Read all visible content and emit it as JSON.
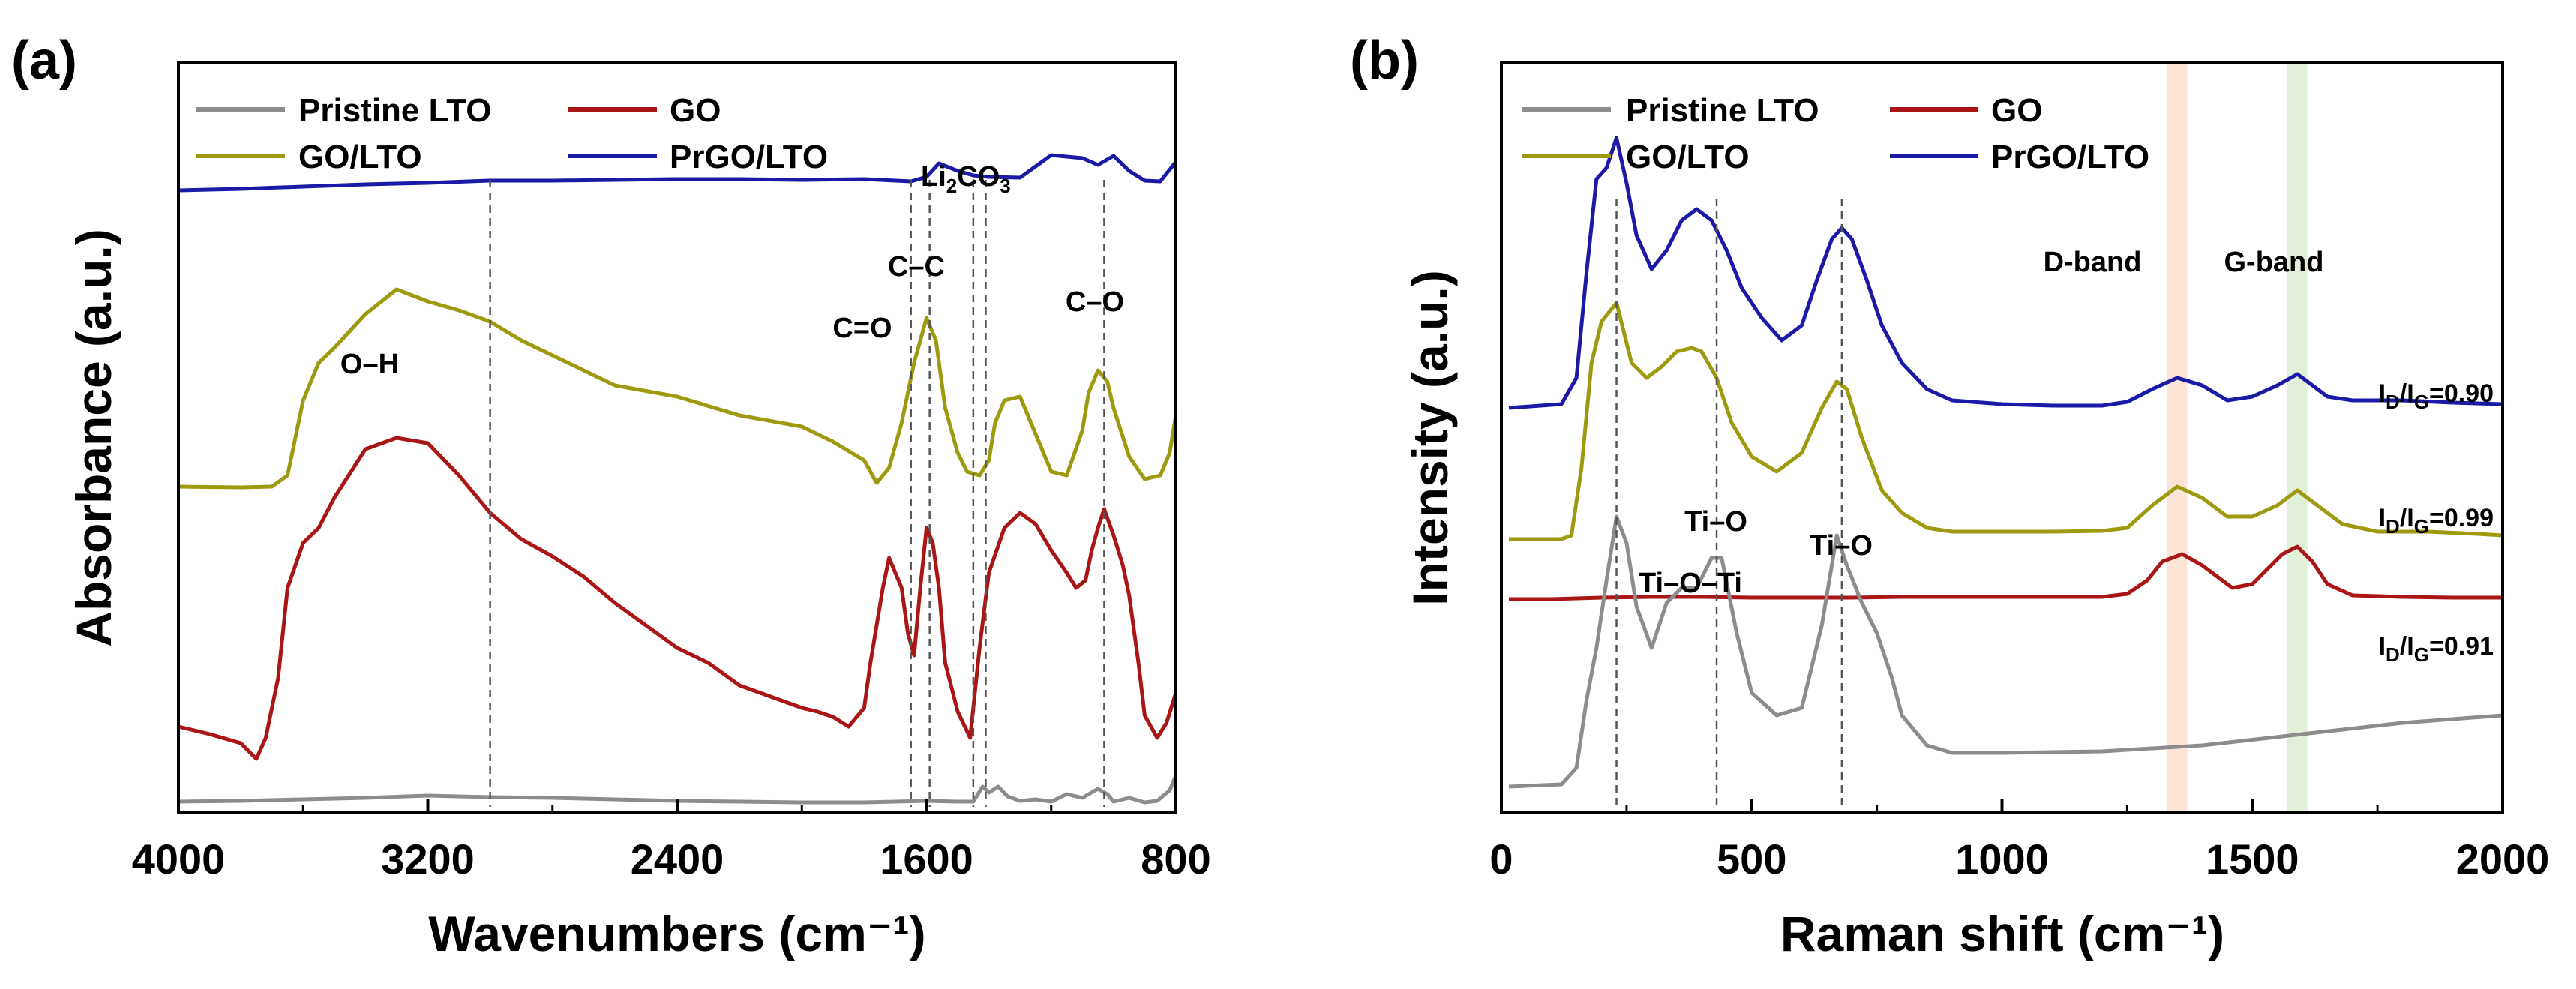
{
  "chart_data": [
    {
      "panel": "(a)",
      "type": "line",
      "title": "",
      "xlabel": "Wavenumbers (cm⁻¹)",
      "ylabel": "Absorbance (a.u.)",
      "xlim": [
        4000,
        800
      ],
      "ylim": [
        0,
        100
      ],
      "xticks": [
        "4000",
        "3200",
        "2400",
        "1600",
        "800"
      ],
      "xtick_values": [
        4000,
        3200,
        2400,
        1600,
        800
      ],
      "legend": [
        "Pristine LTO",
        "GO",
        "GO/LTO",
        "PrGO/LTO"
      ],
      "series": [
        {
          "name": "PrGO/LTO",
          "color": "#1a1aa6",
          "x": [
            4000,
            3800,
            3600,
            3400,
            3200,
            3000,
            2800,
            2600,
            2400,
            2200,
            2000,
            1800,
            1700,
            1650,
            1600,
            1560,
            1500,
            1450,
            1400,
            1300,
            1200,
            1100,
            1050,
            1000,
            950,
            900,
            850,
            800
          ],
          "y": [
            83,
            83.2,
            83.5,
            83.8,
            84,
            84.3,
            84.3,
            84.4,
            84.5,
            84.5,
            84.4,
            84.5,
            84.3,
            84.2,
            84.8,
            86.6,
            85.6,
            85,
            84.8,
            84.7,
            87.7,
            87.3,
            86.4,
            87.6,
            85.6,
            84.3,
            84.2,
            86.8
          ]
        },
        {
          "name": "GO/LTO",
          "color": "#9e9a10",
          "x": [
            4000,
            3800,
            3700,
            3650,
            3600,
            3550,
            3500,
            3400,
            3300,
            3200,
            3100,
            3000,
            2900,
            2800,
            2600,
            2400,
            2200,
            2000,
            1900,
            1800,
            1760,
            1720,
            1680,
            1640,
            1600,
            1570,
            1540,
            1500,
            1470,
            1430,
            1400,
            1380,
            1350,
            1300,
            1250,
            1200,
            1150,
            1100,
            1080,
            1050,
            1020,
            1000,
            950,
            900,
            850,
            820,
            800
          ],
          "y": [
            43.5,
            43.4,
            43.5,
            45,
            55,
            60,
            62,
            66.5,
            69.8,
            68.2,
            67,
            65.5,
            63,
            61,
            57,
            55.5,
            53,
            51.5,
            49.5,
            47,
            44,
            46,
            52,
            60,
            66,
            63,
            54,
            48,
            45.5,
            45,
            47,
            52,
            55,
            55.5,
            50.5,
            45.5,
            45,
            51,
            56,
            59,
            57.5,
            54,
            47.5,
            44.5,
            45,
            48,
            53
          ]
        },
        {
          "name": "GO",
          "color": "#aa1515",
          "x": [
            4000,
            3900,
            3800,
            3750,
            3720,
            3700,
            3680,
            3650,
            3600,
            3550,
            3500,
            3400,
            3300,
            3200,
            3100,
            3000,
            2900,
            2800,
            2700,
            2600,
            2500,
            2400,
            2300,
            2200,
            2100,
            2000,
            1950,
            1900,
            1850,
            1800,
            1780,
            1740,
            1720,
            1680,
            1660,
            1640,
            1620,
            1600,
            1580,
            1560,
            1540,
            1500,
            1460,
            1430,
            1400,
            1350,
            1300,
            1250,
            1200,
            1150,
            1120,
            1090,
            1070,
            1050,
            1030,
            1000,
            970,
            950,
            920,
            900,
            860,
            830,
            800
          ],
          "y": [
            11.5,
            10.5,
            9.3,
            7.2,
            10,
            14,
            18,
            30,
            36,
            38,
            42,
            48.5,
            50,
            49.3,
            45,
            40,
            36.5,
            34.2,
            31.5,
            28,
            25,
            22,
            20,
            17,
            15.5,
            14,
            13.5,
            12.8,
            11.5,
            14,
            20,
            30,
            34,
            30,
            24,
            21,
            30,
            38,
            36,
            30,
            20,
            13.5,
            10,
            22,
            32,
            38,
            40,
            38.5,
            35,
            32,
            30,
            31,
            35,
            38,
            40.5,
            37,
            33,
            29,
            20,
            13,
            10,
            12,
            16
          ]
        },
        {
          "name": "Pristine LTO",
          "color": "#8c8c8c",
          "x": [
            4000,
            3800,
            3600,
            3400,
            3200,
            3000,
            2800,
            2600,
            2400,
            2200,
            2000,
            1800,
            1600,
            1500,
            1450,
            1420,
            1400,
            1370,
            1340,
            1300,
            1250,
            1200,
            1150,
            1100,
            1050,
            1020,
            1000,
            970,
            950,
            900,
            860,
            820,
            800
          ],
          "y": [
            1.5,
            1.6,
            1.8,
            2,
            2.3,
            2.1,
            2,
            1.8,
            1.6,
            1.5,
            1.4,
            1.4,
            1.6,
            1.5,
            1.5,
            3.5,
            2.7,
            3.5,
            2.2,
            1.6,
            1.8,
            1.5,
            2.5,
            2,
            3.2,
            2.5,
            1.5,
            1.8,
            2,
            1.4,
            1.6,
            3,
            5
          ]
        }
      ],
      "dashed_lines": [
        3000,
        1650,
        1590,
        1450,
        1410,
        1030
      ],
      "annotations": [
        {
          "text": "O–H",
          "x": 3000
        },
        {
          "text": "C=O",
          "x": 1650
        },
        {
          "text": "C–C",
          "x": 1590
        },
        {
          "text": "C–O",
          "x": 1030
        }
      ],
      "annotation_li2co3": {
        "main": "Li",
        "sub1": "2",
        "mid": "CO",
        "sub2": "3"
      }
    },
    {
      "panel": "(b)",
      "type": "line",
      "title": "",
      "xlabel": "Raman shift (cm⁻¹)",
      "ylabel": "Intensity (a.u.)",
      "xlim": [
        0,
        2000
      ],
      "ylim": [
        0,
        100
      ],
      "xticks": [
        "0",
        "500",
        "1000",
        "1500",
        "2000"
      ],
      "xtick_values": [
        0,
        500,
        1000,
        1500,
        2000
      ],
      "legend": [
        "Pristine LTO",
        "GO",
        "GO/LTO",
        "PrGO/LTO"
      ],
      "series": [
        {
          "name": "PrGO/LTO",
          "color": "#1a1aa6",
          "x": [
            15,
            120,
            150,
            170,
            190,
            210,
            230,
            250,
            270,
            300,
            330,
            360,
            390,
            420,
            450,
            480,
            520,
            560,
            600,
            630,
            660,
            680,
            700,
            730,
            760,
            800,
            850,
            900,
            1000,
            1100,
            1200,
            1250,
            1300,
            1350,
            1400,
            1450,
            1500,
            1550,
            1590,
            1620,
            1650,
            1700,
            1800,
            1900,
            2000
          ],
          "y": [
            54,
            54.5,
            58,
            72,
            84.5,
            86,
            90,
            84,
            77,
            72.5,
            75,
            79,
            80.5,
            79,
            75,
            70,
            66,
            63,
            65,
            71,
            76.5,
            78,
            76.5,
            71,
            65,
            60,
            56.5,
            55,
            54.5,
            54.3,
            54.3,
            54.8,
            56.5,
            58,
            57,
            55,
            55.5,
            57,
            58.5,
            57,
            55.5,
            55,
            55,
            54.7,
            54.5
          ]
        },
        {
          "name": "GO/LTO",
          "color": "#9e9a10",
          "x": [
            15,
            120,
            140,
            160,
            180,
            200,
            230,
            260,
            290,
            320,
            350,
            380,
            400,
            430,
            460,
            500,
            550,
            600,
            640,
            670,
            690,
            720,
            760,
            800,
            850,
            900,
            1000,
            1100,
            1200,
            1250,
            1300,
            1350,
            1400,
            1450,
            1500,
            1550,
            1590,
            1630,
            1680,
            1750,
            1850,
            1950,
            2000
          ],
          "y": [
            36.5,
            36.5,
            37,
            46,
            60,
            65.5,
            68,
            60,
            58,
            59.5,
            61.5,
            62,
            61.5,
            58,
            52,
            47.5,
            45.5,
            48,
            54,
            57.5,
            56.5,
            50,
            43,
            40,
            38,
            37.5,
            37.5,
            37.5,
            37.6,
            38,
            41,
            43.5,
            42,
            39.5,
            39.5,
            41,
            43,
            41,
            38.5,
            37.5,
            37.5,
            37.2,
            37
          ]
        },
        {
          "name": "GO",
          "color": "#aa1515",
          "x": [
            15,
            100,
            200,
            300,
            400,
            500,
            600,
            700,
            800,
            900,
            1000,
            1100,
            1200,
            1250,
            1290,
            1320,
            1360,
            1400,
            1430,
            1460,
            1500,
            1530,
            1560,
            1590,
            1620,
            1650,
            1700,
            1800,
            1900,
            2000
          ],
          "y": [
            28.5,
            28.5,
            28.7,
            28.8,
            28.8,
            28.7,
            28.7,
            28.7,
            28.8,
            28.8,
            28.8,
            28.8,
            28.8,
            29.2,
            31,
            33.5,
            34.5,
            33,
            31.5,
            30,
            30.5,
            32.5,
            34.5,
            35.5,
            33.5,
            30.5,
            29,
            28.8,
            28.7,
            28.7
          ]
        },
        {
          "name": "Pristine LTO",
          "color": "#8c8c8c",
          "x": [
            15,
            120,
            150,
            170,
            190,
            210,
            230,
            250,
            270,
            300,
            330,
            360,
            390,
            420,
            440,
            470,
            500,
            550,
            600,
            640,
            670,
            690,
            720,
            750,
            780,
            800,
            850,
            900,
            1000,
            1200,
            1400,
            1600,
            1800,
            2000
          ],
          "y": [
            3.5,
            3.8,
            6,
            15,
            22,
            31,
            39.5,
            36,
            27.5,
            22,
            28,
            30,
            30,
            34,
            34,
            24,
            16,
            13,
            14,
            25,
            37,
            33,
            28,
            24,
            18,
            13,
            9,
            8,
            8,
            8.2,
            9,
            10.5,
            12,
            13
          ]
        }
      ],
      "dashed_lines": [
        230,
        430,
        680
      ],
      "bands": [
        {
          "name": "D-band",
          "x": [
            1330,
            1370
          ],
          "color": "#fce4d6"
        },
        {
          "name": "G-band",
          "x": [
            1570,
            1610
          ],
          "color": "#e2f0d9"
        }
      ],
      "annotations": [
        {
          "text": "Ti–O–Ti",
          "x": 230
        },
        {
          "text": "Ti–O",
          "x": 430
        },
        {
          "text": "Ti–O",
          "x": 680
        },
        {
          "text": "D-band",
          "x": 1350
        },
        {
          "text": "G-band",
          "x": 1590
        }
      ],
      "ratios": [
        {
          "prefix": "I",
          "sub1": "D",
          "slash": "/I",
          "sub2": "G",
          "value": "=0.90"
        },
        {
          "prefix": "I",
          "sub1": "D",
          "slash": "/I",
          "sub2": "G",
          "value": "=0.99"
        },
        {
          "prefix": "I",
          "sub1": "D",
          "slash": "/I",
          "sub2": "G",
          "value": "=0.91"
        }
      ]
    }
  ]
}
